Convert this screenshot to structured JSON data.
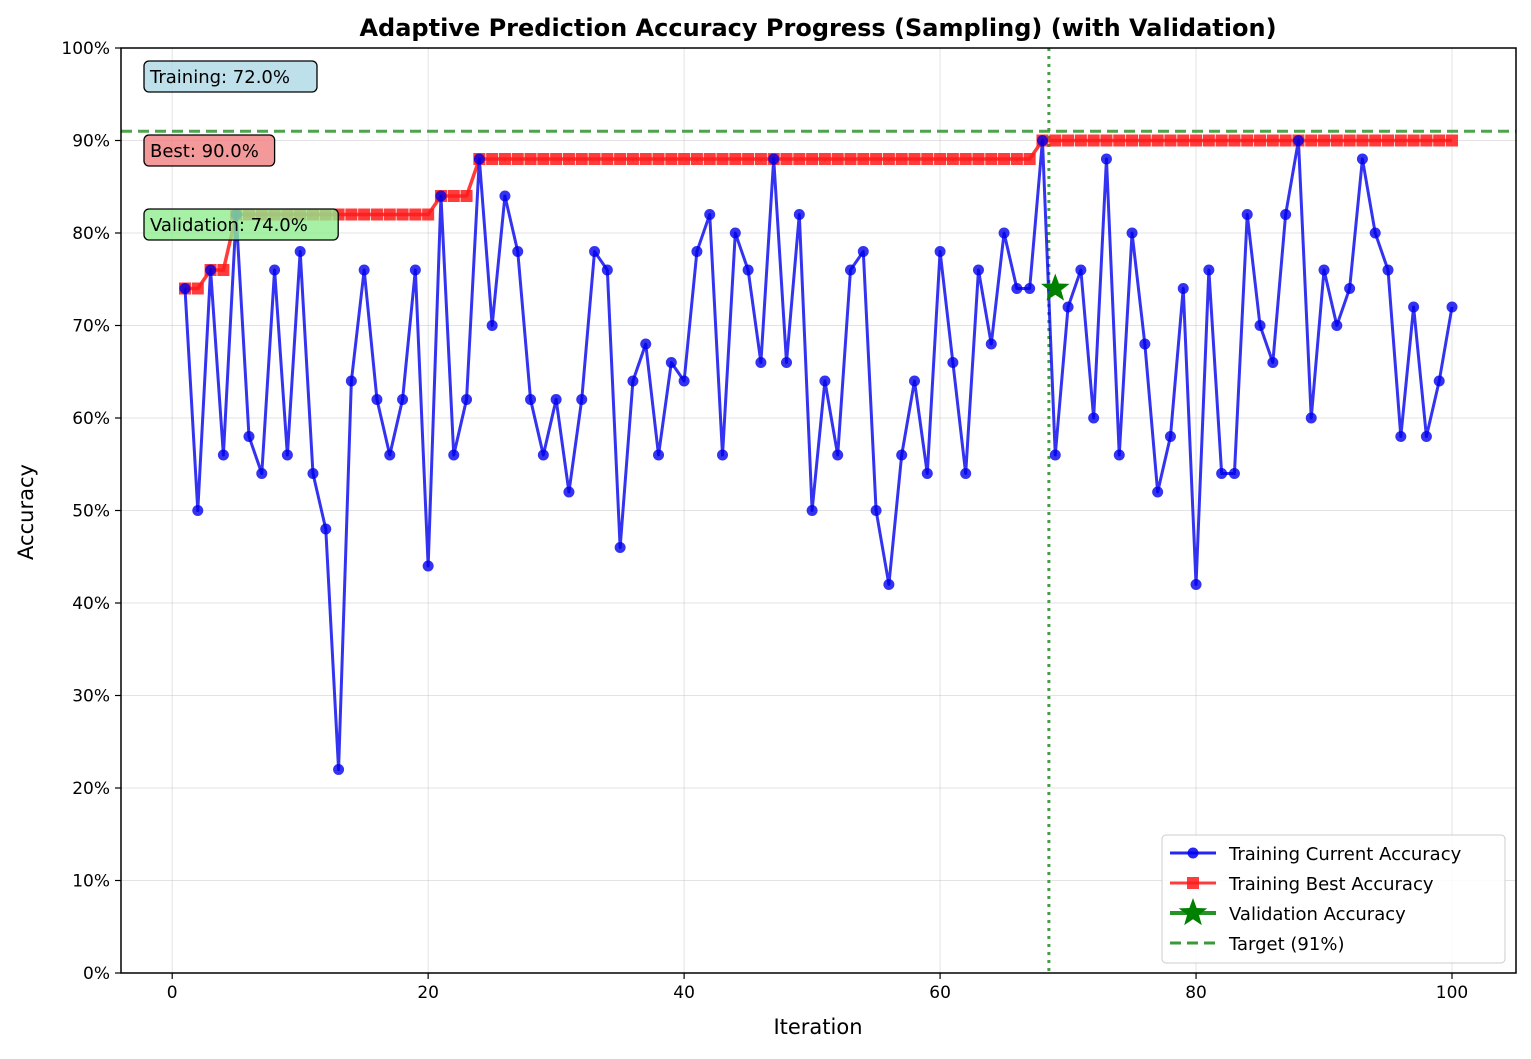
{
  "chart_data": {
    "type": "line",
    "title": "Adaptive Prediction Accuracy Progress (Sampling) (with Validation)",
    "xlabel": "Iteration",
    "ylabel": "Accuracy",
    "xlim": [
      -4,
      105
    ],
    "ylim": [
      0,
      1
    ],
    "xticks": [
      0,
      20,
      40,
      60,
      80,
      100
    ],
    "xtick_labels": [
      "0",
      "20",
      "40",
      "60",
      "80",
      "100"
    ],
    "yticks": [
      0,
      0.1,
      0.2,
      0.3,
      0.4,
      0.5,
      0.6,
      0.7,
      0.8,
      0.9,
      1.0
    ],
    "ytick_labels": [
      "0%",
      "10%",
      "20%",
      "30%",
      "40%",
      "50%",
      "60%",
      "70%",
      "80%",
      "90%",
      "100%"
    ],
    "grid": true,
    "legend_position": "lower-right",
    "series": [
      {
        "name": "Training Current Accuracy",
        "color": "#0000ee",
        "marker": "circle",
        "x": [
          1,
          2,
          3,
          4,
          5,
          6,
          7,
          8,
          9,
          10,
          11,
          12,
          13,
          14,
          15,
          16,
          17,
          18,
          19,
          20,
          21,
          22,
          23,
          24,
          25,
          26,
          27,
          28,
          29,
          30,
          31,
          32,
          33,
          34,
          35,
          36,
          37,
          38,
          39,
          40,
          41,
          42,
          43,
          44,
          45,
          46,
          47,
          48,
          49,
          50,
          51,
          52,
          53,
          54,
          55,
          56,
          57,
          58,
          59,
          60,
          61,
          62,
          63,
          64,
          65,
          66,
          67,
          68,
          69,
          70,
          71,
          72,
          73,
          74,
          75,
          76,
          77,
          78,
          79,
          80,
          81,
          82,
          83,
          84,
          85,
          86,
          87,
          88,
          89,
          90,
          91,
          92,
          93,
          94,
          95,
          96,
          97,
          98,
          99,
          100
        ],
        "values": [
          0.74,
          0.5,
          0.76,
          0.56,
          0.82,
          0.58,
          0.54,
          0.76,
          0.56,
          0.78,
          0.54,
          0.48,
          0.22,
          0.64,
          0.76,
          0.62,
          0.56,
          0.62,
          0.76,
          0.44,
          0.84,
          0.56,
          0.62,
          0.88,
          0.7,
          0.84,
          0.78,
          0.62,
          0.56,
          0.62,
          0.52,
          0.62,
          0.78,
          0.76,
          0.46,
          0.64,
          0.68,
          0.56,
          0.66,
          0.64,
          0.78,
          0.82,
          0.56,
          0.8,
          0.76,
          0.66,
          0.88,
          0.66,
          0.82,
          0.5,
          0.64,
          0.56,
          0.76,
          0.78,
          0.5,
          0.42,
          0.56,
          0.64,
          0.54,
          0.78,
          0.66,
          0.54,
          0.76,
          0.68,
          0.8,
          0.74,
          0.74,
          0.9,
          0.56,
          0.72,
          0.76,
          0.6,
          0.88,
          0.56,
          0.8,
          0.68,
          0.52,
          0.58,
          0.74,
          0.42,
          0.76,
          0.54,
          0.54,
          0.82,
          0.7,
          0.66,
          0.82,
          0.9,
          0.6,
          0.76,
          0.7,
          0.74,
          0.88,
          0.8,
          0.76,
          0.58,
          0.72,
          0.58,
          0.64,
          0.72
        ]
      },
      {
        "name": "Training Best Accuracy",
        "color": "#ff1a1a",
        "marker": "square",
        "x": [
          1,
          2,
          3,
          4,
          5,
          6,
          7,
          8,
          9,
          10,
          11,
          12,
          13,
          14,
          15,
          16,
          17,
          18,
          19,
          20,
          21,
          22,
          23,
          24,
          25,
          26,
          27,
          28,
          29,
          30,
          31,
          32,
          33,
          34,
          35,
          36,
          37,
          38,
          39,
          40,
          41,
          42,
          43,
          44,
          45,
          46,
          47,
          48,
          49,
          50,
          51,
          52,
          53,
          54,
          55,
          56,
          57,
          58,
          59,
          60,
          61,
          62,
          63,
          64,
          65,
          66,
          67,
          68,
          69,
          70,
          71,
          72,
          73,
          74,
          75,
          76,
          77,
          78,
          79,
          80,
          81,
          82,
          83,
          84,
          85,
          86,
          87,
          88,
          89,
          90,
          91,
          92,
          93,
          94,
          95,
          96,
          97,
          98,
          99,
          100
        ],
        "values": [
          0.74,
          0.74,
          0.76,
          0.76,
          0.82,
          0.82,
          0.82,
          0.82,
          0.82,
          0.82,
          0.82,
          0.82,
          0.82,
          0.82,
          0.82,
          0.82,
          0.82,
          0.82,
          0.82,
          0.82,
          0.84,
          0.84,
          0.84,
          0.88,
          0.88,
          0.88,
          0.88,
          0.88,
          0.88,
          0.88,
          0.88,
          0.88,
          0.88,
          0.88,
          0.88,
          0.88,
          0.88,
          0.88,
          0.88,
          0.88,
          0.88,
          0.88,
          0.88,
          0.88,
          0.88,
          0.88,
          0.88,
          0.88,
          0.88,
          0.88,
          0.88,
          0.88,
          0.88,
          0.88,
          0.88,
          0.88,
          0.88,
          0.88,
          0.88,
          0.88,
          0.88,
          0.88,
          0.88,
          0.88,
          0.88,
          0.88,
          0.88,
          0.9,
          0.9,
          0.9,
          0.9,
          0.9,
          0.9,
          0.9,
          0.9,
          0.9,
          0.9,
          0.9,
          0.9,
          0.9,
          0.9,
          0.9,
          0.9,
          0.9,
          0.9,
          0.9,
          0.9,
          0.9,
          0.9,
          0.9,
          0.9,
          0.9,
          0.9,
          0.9,
          0.9,
          0.9,
          0.9,
          0.9,
          0.9,
          0.9
        ]
      },
      {
        "name": "Validation Accuracy",
        "color": "#008000",
        "marker": "star",
        "x": [
          69
        ],
        "values": [
          0.74
        ]
      }
    ],
    "target": {
      "name": "Target (91%)",
      "value": 0.91,
      "color": "#3a9a3a"
    },
    "validation_marker_line": {
      "x": 68.5,
      "color": "#3a9a3a"
    },
    "annotations": [
      {
        "text": "Training: 72.0%",
        "bg": "#add8e6"
      },
      {
        "text": "Best: 90.0%",
        "bg": "#f08080"
      },
      {
        "text": "Validation: 74.0%",
        "bg": "#90ee90"
      }
    ],
    "legend": [
      {
        "label": "Training Current Accuracy",
        "kind": "line-circle",
        "color": "#0000ee"
      },
      {
        "label": "Training Best Accuracy",
        "kind": "line-square",
        "color": "#ff1a1a"
      },
      {
        "label": "Validation Accuracy",
        "kind": "line-star",
        "color": "#008000"
      },
      {
        "label": "Target (91%)",
        "kind": "dashed",
        "color": "#3a9a3a"
      }
    ]
  }
}
